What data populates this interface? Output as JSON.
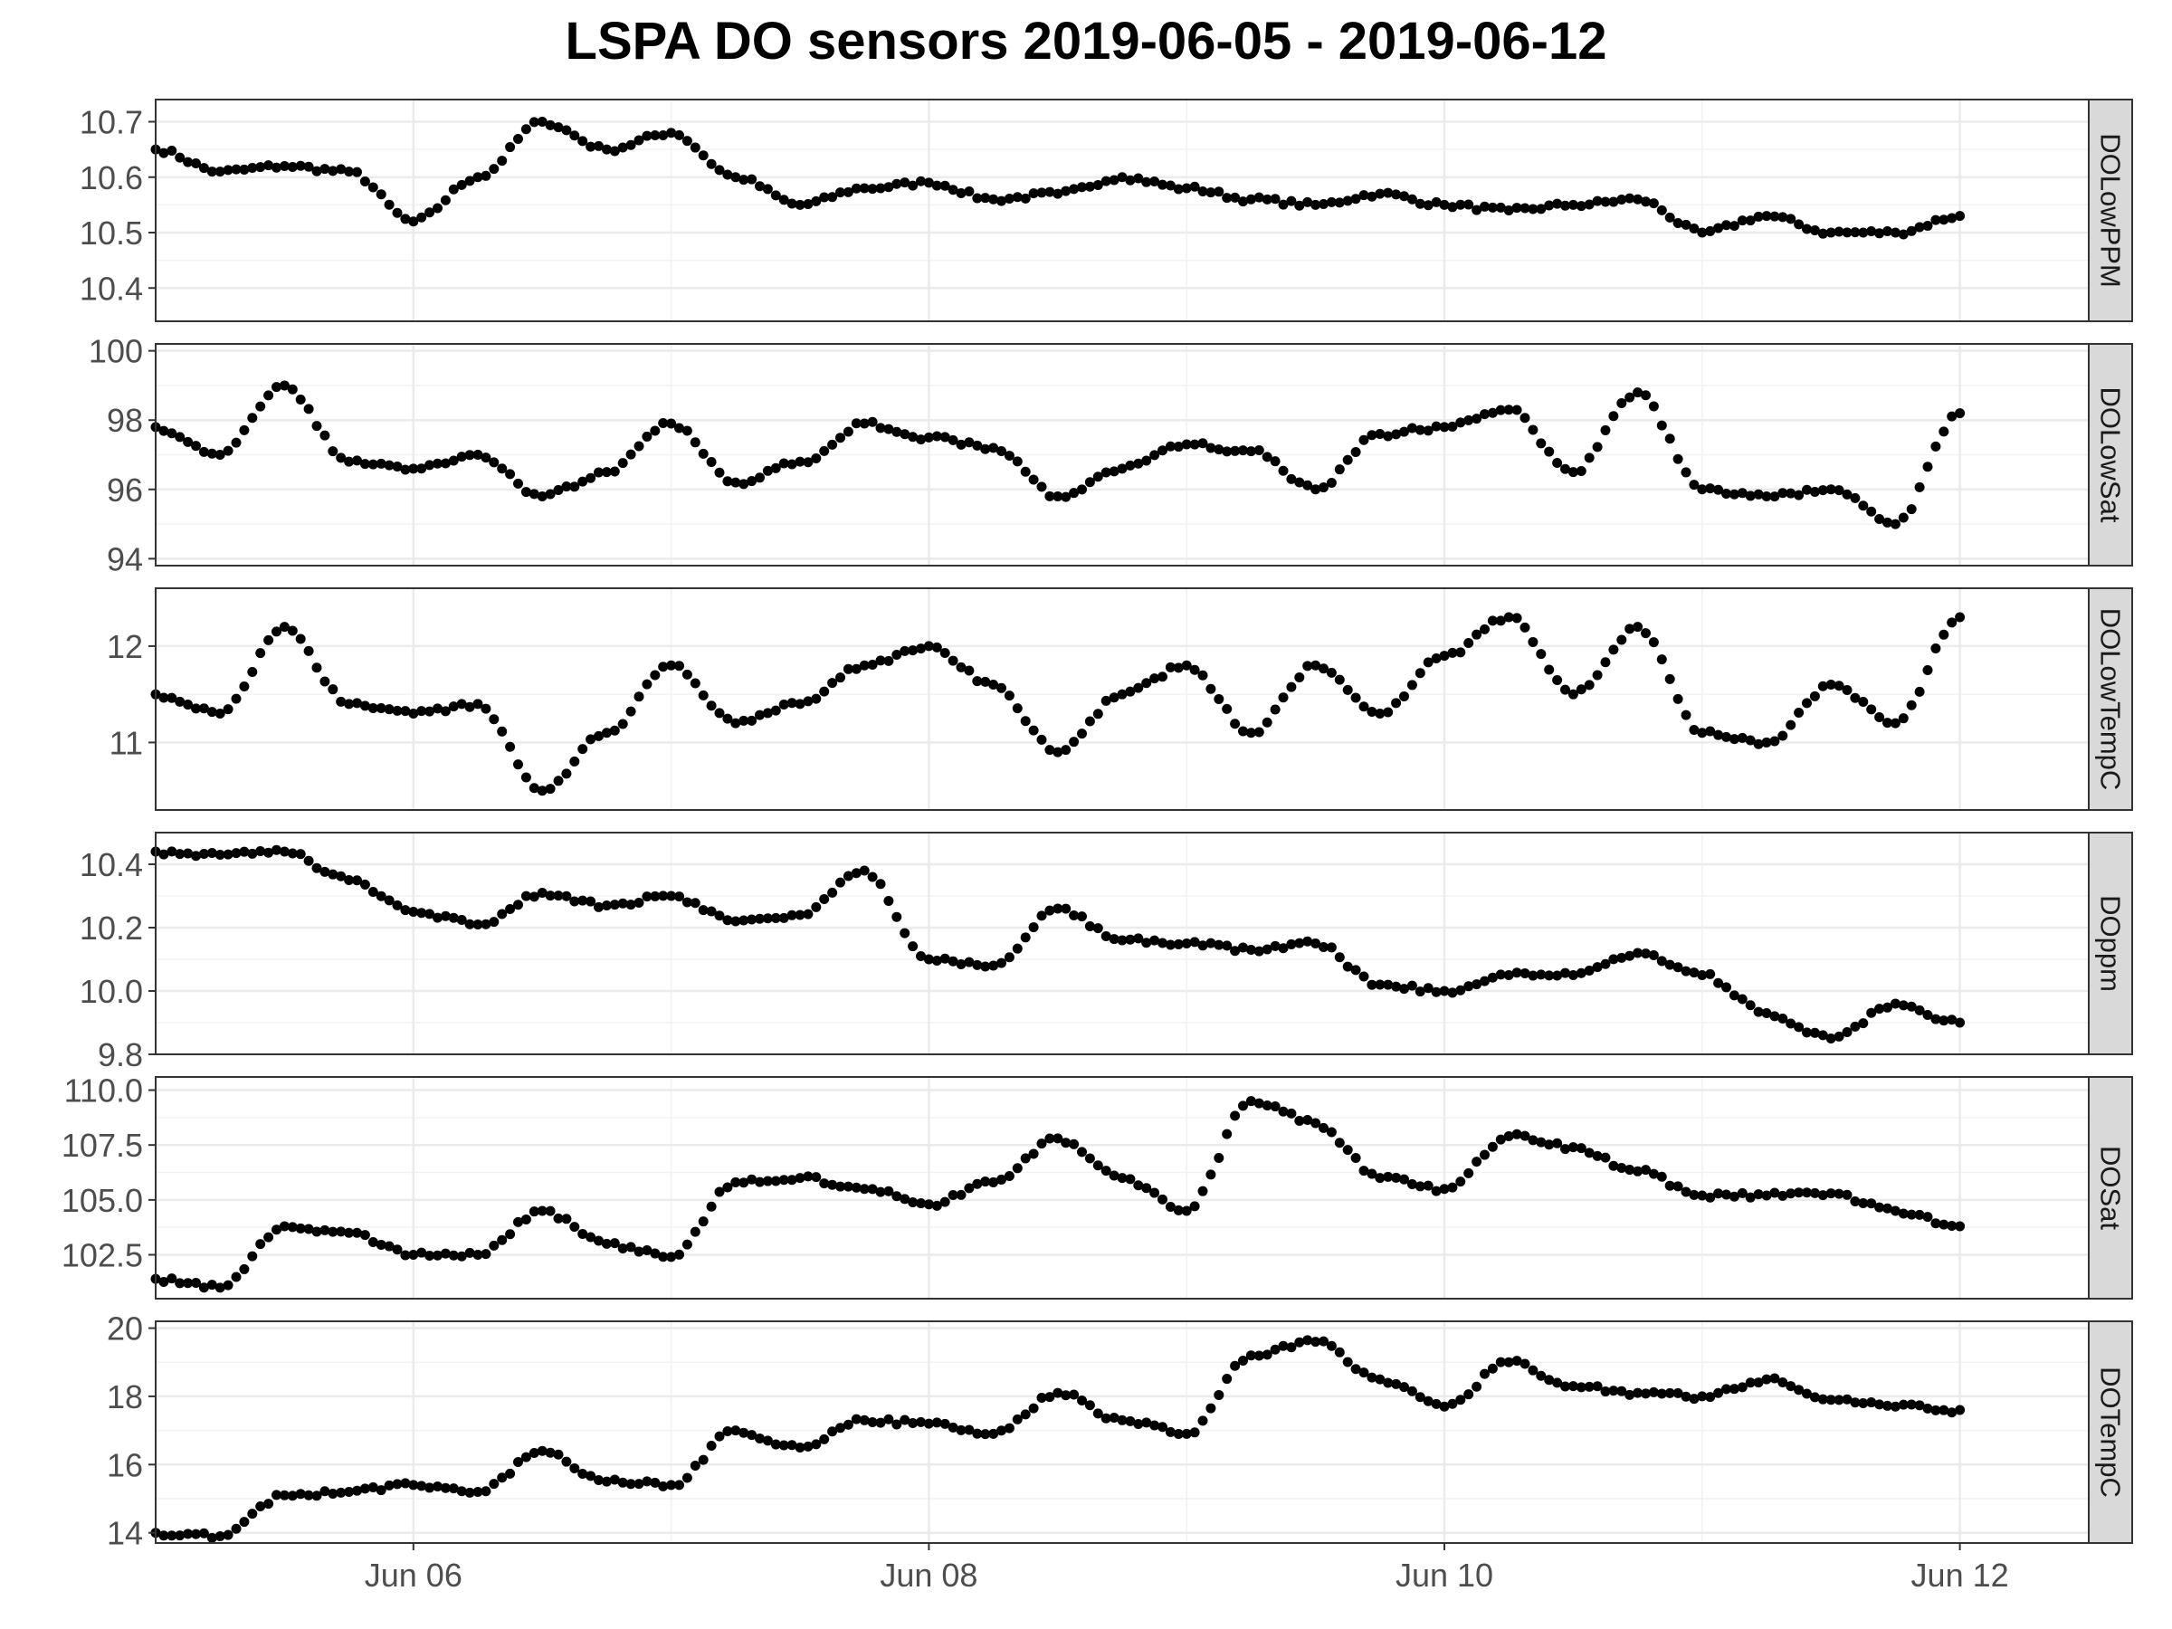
{
  "title": "LSPA DO sensors 2019-06-05 - 2019-06-12",
  "chart_data": {
    "type": "scatter",
    "title": "LSPA DO sensors 2019-06-05 - 2019-06-12",
    "xlabel": "",
    "ylabel": "",
    "x_range": [
      "2019-06-05T00:00",
      "2019-06-12T12:00"
    ],
    "x_ticks": [
      {
        "value": "2019-06-06",
        "label": "Jun 06"
      },
      {
        "value": "2019-06-08",
        "label": "Jun 08"
      },
      {
        "value": "2019-06-10",
        "label": "Jun 10"
      },
      {
        "value": "2019-06-12",
        "label": "Jun 12"
      }
    ],
    "grid": true,
    "marker_color": "#000000",
    "strip_fill": "#D9D9D9",
    "panels": [
      {
        "name": "DOLowPPM",
        "ylim": [
          10.34,
          10.74
        ],
        "y_ticks": [
          10.4,
          10.5,
          10.6,
          10.7
        ],
        "y_tick_labels": [
          "10.4",
          "10.5",
          "10.6",
          "10.7"
        ],
        "x": [
          "2019-06-05T00:00",
          "2019-06-05T06:00",
          "2019-06-05T12:00",
          "2019-06-05T18:00",
          "2019-06-06T00:00",
          "2019-06-06T06:00",
          "2019-06-06T12:00",
          "2019-06-06T18:00",
          "2019-06-07T00:00",
          "2019-06-07T06:00",
          "2019-06-07T12:00",
          "2019-06-07T18:00",
          "2019-06-08T00:00",
          "2019-06-08T06:00",
          "2019-06-08T12:00",
          "2019-06-08T18:00",
          "2019-06-09T00:00",
          "2019-06-09T06:00",
          "2019-06-09T12:00",
          "2019-06-09T18:00",
          "2019-06-10T00:00",
          "2019-06-10T06:00",
          "2019-06-10T12:00",
          "2019-06-10T18:00",
          "2019-06-11T00:00",
          "2019-06-11T06:00",
          "2019-06-11T12:00",
          "2019-06-11T18:00",
          "2019-06-12T00:00"
        ],
        "y": [
          10.65,
          10.61,
          10.62,
          10.61,
          10.52,
          10.6,
          10.7,
          10.65,
          10.68,
          10.6,
          10.55,
          10.58,
          10.59,
          10.56,
          10.57,
          10.6,
          10.58,
          10.56,
          10.55,
          10.57,
          10.55,
          10.54,
          10.55,
          10.56,
          10.5,
          10.53,
          10.5,
          10.5,
          10.53
        ]
      },
      {
        "name": "DOLowSat",
        "ylim": [
          93.8,
          100.2
        ],
        "y_ticks": [
          94,
          96,
          98,
          100
        ],
        "y_tick_labels": [
          "94",
          "96",
          "98",
          "100"
        ],
        "x": [
          "2019-06-05T00:00",
          "2019-06-05T06:00",
          "2019-06-05T12:00",
          "2019-06-05T18:00",
          "2019-06-06T00:00",
          "2019-06-06T06:00",
          "2019-06-06T12:00",
          "2019-06-06T18:00",
          "2019-06-07T00:00",
          "2019-06-07T06:00",
          "2019-06-07T12:00",
          "2019-06-07T18:00",
          "2019-06-08T00:00",
          "2019-06-08T06:00",
          "2019-06-08T12:00",
          "2019-06-08T18:00",
          "2019-06-09T00:00",
          "2019-06-09T06:00",
          "2019-06-09T12:00",
          "2019-06-09T18:00",
          "2019-06-10T00:00",
          "2019-06-10T06:00",
          "2019-06-10T12:00",
          "2019-06-10T18:00",
          "2019-06-11T00:00",
          "2019-06-11T06:00",
          "2019-06-11T12:00",
          "2019-06-11T18:00",
          "2019-06-12T00:00"
        ],
        "y": [
          97.8,
          97.0,
          99.0,
          96.8,
          96.6,
          97.0,
          95.8,
          96.5,
          97.9,
          96.2,
          96.8,
          97.9,
          97.5,
          97.2,
          95.8,
          96.6,
          97.3,
          97.1,
          96.0,
          97.6,
          97.8,
          98.3,
          96.5,
          98.8,
          96.0,
          95.8,
          96.0,
          95.0,
          98.2
        ]
      },
      {
        "name": "DOLowTempC",
        "ylim": [
          10.3,
          12.6
        ],
        "y_ticks": [
          11,
          12
        ],
        "y_tick_labels": [
          "11",
          "12"
        ],
        "x": [
          "2019-06-05T00:00",
          "2019-06-05T06:00",
          "2019-06-05T12:00",
          "2019-06-05T18:00",
          "2019-06-06T00:00",
          "2019-06-06T06:00",
          "2019-06-06T12:00",
          "2019-06-06T18:00",
          "2019-06-07T00:00",
          "2019-06-07T06:00",
          "2019-06-07T12:00",
          "2019-06-07T18:00",
          "2019-06-08T00:00",
          "2019-06-08T06:00",
          "2019-06-08T12:00",
          "2019-06-08T18:00",
          "2019-06-09T00:00",
          "2019-06-09T06:00",
          "2019-06-09T12:00",
          "2019-06-09T18:00",
          "2019-06-10T00:00",
          "2019-06-10T06:00",
          "2019-06-10T12:00",
          "2019-06-10T18:00",
          "2019-06-11T00:00",
          "2019-06-11T06:00",
          "2019-06-11T12:00",
          "2019-06-11T18:00",
          "2019-06-12T00:00"
        ],
        "y": [
          11.5,
          11.3,
          12.2,
          11.4,
          11.3,
          11.4,
          10.5,
          11.1,
          11.8,
          11.2,
          11.4,
          11.8,
          12.0,
          11.6,
          10.9,
          11.5,
          11.8,
          11.1,
          11.8,
          11.3,
          11.9,
          12.3,
          11.5,
          12.2,
          11.1,
          11.0,
          11.6,
          11.2,
          12.3
        ]
      },
      {
        "name": "DOppm",
        "ylim": [
          9.8,
          10.5
        ],
        "y_ticks": [
          9.8,
          10.0,
          10.2,
          10.4
        ],
        "y_tick_labels": [
          "9.8",
          "10.0",
          "10.2",
          "10.4"
        ],
        "x": [
          "2019-06-05T00:00",
          "2019-06-05T06:00",
          "2019-06-05T12:00",
          "2019-06-05T18:00",
          "2019-06-06T00:00",
          "2019-06-06T06:00",
          "2019-06-06T12:00",
          "2019-06-06T18:00",
          "2019-06-07T00:00",
          "2019-06-07T06:00",
          "2019-06-07T12:00",
          "2019-06-07T18:00",
          "2019-06-08T00:00",
          "2019-06-08T06:00",
          "2019-06-08T12:00",
          "2019-06-08T18:00",
          "2019-06-09T00:00",
          "2019-06-09T06:00",
          "2019-06-09T12:00",
          "2019-06-09T18:00",
          "2019-06-10T00:00",
          "2019-06-10T06:00",
          "2019-06-10T12:00",
          "2019-06-10T18:00",
          "2019-06-11T00:00",
          "2019-06-11T06:00",
          "2019-06-11T12:00",
          "2019-06-11T18:00",
          "2019-06-12T00:00"
        ],
        "y": [
          10.44,
          10.43,
          10.44,
          10.35,
          10.25,
          10.21,
          10.31,
          10.27,
          10.3,
          10.22,
          10.24,
          10.38,
          10.1,
          10.08,
          10.26,
          10.16,
          10.15,
          10.13,
          10.15,
          10.02,
          10.0,
          10.05,
          10.05,
          10.12,
          10.05,
          9.93,
          9.85,
          9.96,
          9.9
        ]
      },
      {
        "name": "DOSat",
        "ylim": [
          100.5,
          110.6
        ],
        "y_ticks": [
          102.5,
          105.0,
          107.5,
          110.0
        ],
        "y_tick_labels": [
          "102.5",
          "105.0",
          "107.5",
          "110.0"
        ],
        "x": [
          "2019-06-05T00:00",
          "2019-06-05T06:00",
          "2019-06-05T12:00",
          "2019-06-05T18:00",
          "2019-06-06T00:00",
          "2019-06-06T06:00",
          "2019-06-06T12:00",
          "2019-06-06T18:00",
          "2019-06-07T00:00",
          "2019-06-07T06:00",
          "2019-06-07T12:00",
          "2019-06-07T18:00",
          "2019-06-08T00:00",
          "2019-06-08T06:00",
          "2019-06-08T12:00",
          "2019-06-08T18:00",
          "2019-06-09T00:00",
          "2019-06-09T06:00",
          "2019-06-09T12:00",
          "2019-06-09T18:00",
          "2019-06-10T00:00",
          "2019-06-10T06:00",
          "2019-06-10T12:00",
          "2019-06-10T18:00",
          "2019-06-11T00:00",
          "2019-06-11T06:00",
          "2019-06-11T12:00",
          "2019-06-11T18:00",
          "2019-06-12T00:00"
        ],
        "y": [
          101.4,
          101.0,
          103.8,
          103.5,
          102.5,
          102.5,
          104.5,
          103.0,
          102.4,
          105.8,
          106.0,
          105.5,
          104.8,
          105.8,
          107.8,
          106.0,
          104.5,
          109.5,
          108.5,
          106.0,
          105.5,
          107.9,
          107.4,
          106.3,
          105.2,
          105.2,
          105.3,
          104.5,
          103.8
        ]
      },
      {
        "name": "DOTempC",
        "ylim": [
          13.7,
          20.2
        ],
        "y_ticks": [
          14,
          16,
          18,
          20
        ],
        "y_tick_labels": [
          "14",
          "16",
          "18",
          "20"
        ],
        "x": [
          "2019-06-05T00:00",
          "2019-06-05T06:00",
          "2019-06-05T12:00",
          "2019-06-05T18:00",
          "2019-06-06T00:00",
          "2019-06-06T06:00",
          "2019-06-06T12:00",
          "2019-06-06T18:00",
          "2019-06-07T00:00",
          "2019-06-07T06:00",
          "2019-06-07T12:00",
          "2019-06-07T18:00",
          "2019-06-08T00:00",
          "2019-06-08T06:00",
          "2019-06-08T12:00",
          "2019-06-08T18:00",
          "2019-06-09T00:00",
          "2019-06-09T06:00",
          "2019-06-09T12:00",
          "2019-06-09T18:00",
          "2019-06-10T00:00",
          "2019-06-10T06:00",
          "2019-06-10T12:00",
          "2019-06-10T18:00",
          "2019-06-11T00:00",
          "2019-06-11T06:00",
          "2019-06-11T12:00",
          "2019-06-11T18:00",
          "2019-06-12T00:00"
        ],
        "y": [
          14.0,
          13.9,
          15.1,
          15.2,
          15.4,
          15.2,
          16.4,
          15.5,
          15.4,
          17.0,
          16.5,
          17.3,
          17.2,
          16.9,
          18.1,
          17.3,
          16.9,
          19.2,
          19.6,
          18.5,
          17.7,
          19.0,
          18.3,
          18.1,
          18.0,
          18.5,
          17.9,
          17.7,
          17.6
        ]
      }
    ]
  }
}
